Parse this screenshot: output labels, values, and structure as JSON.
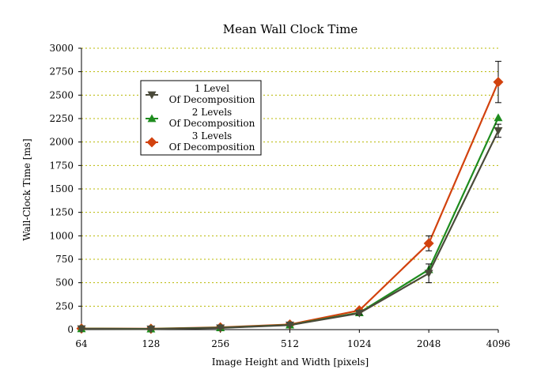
{
  "chart_data": {
    "type": "line",
    "title": "Mean Wall Clock Time",
    "xlabel": "Image Height and Width [pixels]",
    "ylabel": "Wall-Clock Time [ms]",
    "categories": [
      "64",
      "128",
      "256",
      "512",
      "1024",
      "2048",
      "4096"
    ],
    "ylim": [
      0,
      3000
    ],
    "yticks": [
      "0",
      "250",
      "500",
      "750",
      "1000",
      "1250",
      "1500",
      "1750",
      "2000",
      "2250",
      "2500",
      "2750",
      "3000"
    ],
    "grid": true,
    "legend_position": "top-left",
    "series": [
      {
        "name_line1": "1 Level",
        "name_line2": "Of Decomposition",
        "color": "#4a4a3a",
        "marker": "triangle-down",
        "values": [
          8,
          6,
          18,
          48,
          175,
          600,
          2120
        ],
        "error": [
          0,
          0,
          0,
          0,
          15,
          100,
          70
        ]
      },
      {
        "name_line1": "2 Levels",
        "name_line2": "Of Decomposition",
        "color": "#1e8c1e",
        "marker": "triangle-up",
        "values": [
          10,
          8,
          20,
          50,
          180,
          640,
          2260
        ],
        "error": [
          0,
          0,
          0,
          0,
          0,
          0,
          0
        ]
      },
      {
        "name_line1": "3 Levels",
        "name_line2": "Of Decomposition",
        "color": "#d2420e",
        "marker": "diamond",
        "values": [
          12,
          10,
          24,
          55,
          205,
          920,
          2640
        ],
        "error": [
          0,
          0,
          0,
          0,
          0,
          80,
          220
        ]
      }
    ]
  }
}
